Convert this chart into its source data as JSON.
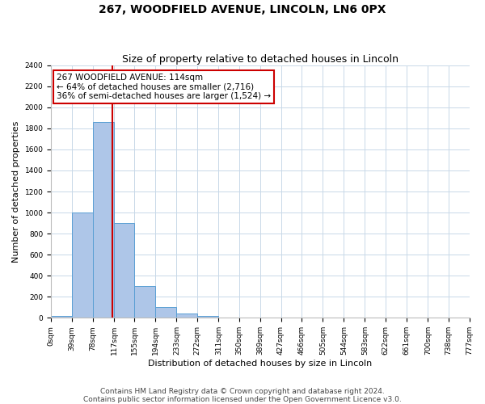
{
  "title": "267, WOODFIELD AVENUE, LINCOLN, LN6 0PX",
  "subtitle": "Size of property relative to detached houses in Lincoln",
  "xlabel": "Distribution of detached houses by size in Lincoln",
  "ylabel": "Number of detached properties",
  "bin_edges": [
    0,
    39,
    78,
    117,
    155,
    194,
    233,
    272,
    311,
    350,
    389,
    427,
    466,
    505,
    544,
    583,
    622,
    661,
    700,
    738,
    777
  ],
  "bar_heights": [
    20,
    1000,
    1860,
    900,
    300,
    100,
    40,
    20,
    0,
    0,
    0,
    0,
    0,
    0,
    0,
    0,
    0,
    0,
    0,
    0
  ],
  "bar_color": "#aec6e8",
  "bar_edge_color": "#5a9fd4",
  "property_size": 114,
  "vline_color": "#cc0000",
  "annotation_text": "267 WOODFIELD AVENUE: 114sqm\n← 64% of detached houses are smaller (2,716)\n36% of semi-detached houses are larger (1,524) →",
  "annotation_box_color": "#ffffff",
  "annotation_box_edge_color": "#cc0000",
  "ylim": [
    0,
    2400
  ],
  "yticks": [
    0,
    200,
    400,
    600,
    800,
    1000,
    1200,
    1400,
    1600,
    1800,
    2000,
    2200,
    2400
  ],
  "tick_labels": [
    "0sqm",
    "39sqm",
    "78sqm",
    "117sqm",
    "155sqm",
    "194sqm",
    "233sqm",
    "272sqm",
    "311sqm",
    "350sqm",
    "389sqm",
    "427sqm",
    "466sqm",
    "505sqm",
    "544sqm",
    "583sqm",
    "622sqm",
    "661sqm",
    "700sqm",
    "738sqm",
    "777sqm"
  ],
  "footer_line1": "Contains HM Land Registry data © Crown copyright and database right 2024.",
  "footer_line2": "Contains public sector information licensed under the Open Government Licence v3.0.",
  "background_color": "#ffffff",
  "grid_color": "#c8d8e8",
  "title_fontsize": 10,
  "subtitle_fontsize": 9,
  "axis_label_fontsize": 8,
  "tick_fontsize": 6.5,
  "annotation_fontsize": 7.5,
  "footer_fontsize": 6.5
}
